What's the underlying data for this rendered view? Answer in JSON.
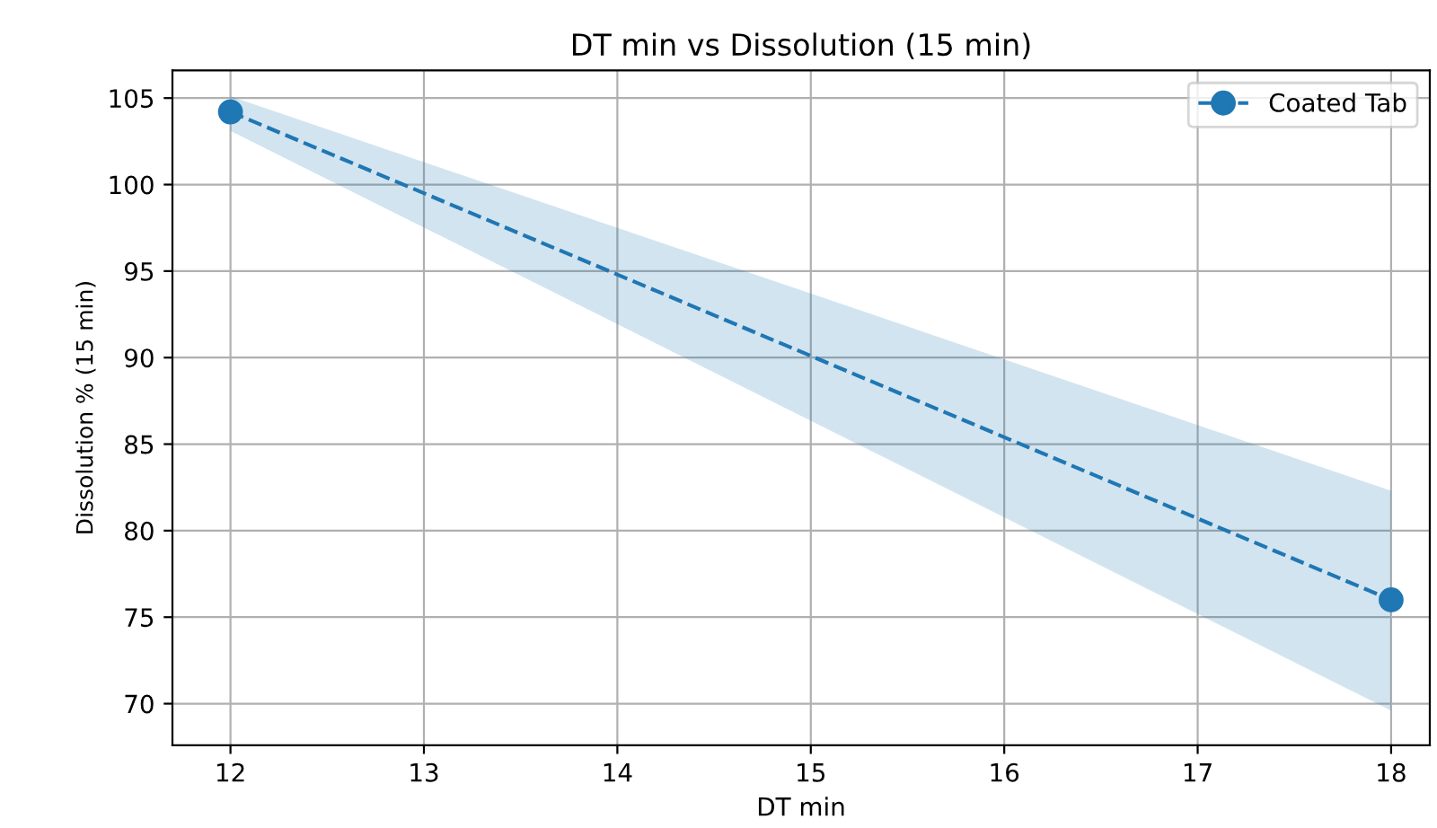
{
  "chart_data": {
    "type": "line",
    "title": "DT min vs Dissolution (15 min)",
    "xlabel": "DT min",
    "ylabel": "Dissolution % (15 min)",
    "x": [
      12,
      18
    ],
    "series": [
      {
        "name": "Coated Tab",
        "color": "#1f77b4",
        "values": [
          104.2,
          76.0
        ],
        "lower": [
          103.1,
          69.6
        ],
        "upper": [
          105.1,
          82.3
        ]
      }
    ],
    "xlim": [
      11.7,
      18.2
    ],
    "ylim": [
      67.6,
      106.6
    ],
    "xticks": [
      12,
      13,
      14,
      15,
      16,
      17,
      18
    ],
    "yticks": [
      70,
      75,
      80,
      85,
      90,
      95,
      100,
      105
    ],
    "grid": true,
    "legend": "top right",
    "marker": "circle",
    "line_style": "dashed"
  }
}
